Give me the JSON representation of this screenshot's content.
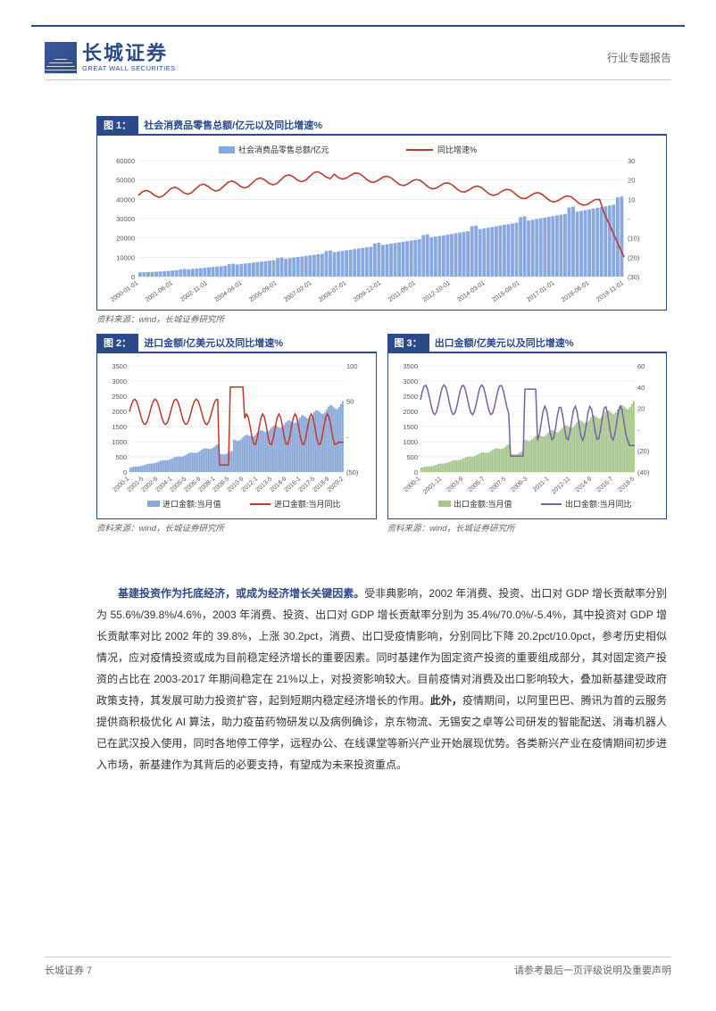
{
  "header": {
    "logo_cn": "长城证券",
    "logo_en": "GREAT WALL SECURITIES",
    "report_type": "行业专题报告"
  },
  "fig1": {
    "label": "图 1：",
    "title": "社会消费品零售总额/亿元以及同比增速%",
    "type": "bar_line_combo",
    "legend_bar": "社会消费品零售总额/亿元",
    "legend_line": "同比增速%",
    "x_labels": [
      "2000-01-01",
      "2001-06-01",
      "2002-11-01",
      "2004-04-01",
      "2005-09-01",
      "2007-02-01",
      "2008-07-01",
      "2009-12-01",
      "2011-05-01",
      "2012-10-01",
      "2014-03-01",
      "2015-08-01",
      "2017-01-01",
      "2018-06-01",
      "2019-11-01"
    ],
    "y_left_ticks": [
      0,
      10000,
      20000,
      30000,
      40000,
      50000,
      60000
    ],
    "y_right_ticks": [
      "(30)",
      "(20)",
      "(10)",
      "-",
      "10",
      "20",
      "30"
    ],
    "bar_color": "#8aa8e0",
    "line_color": "#c0392b",
    "bar_values_first": 2200,
    "bar_values_last": 38000,
    "line_start": 12,
    "line_peak": 23,
    "line_end": -20,
    "source": "资料来源：wind，长城证券研究所"
  },
  "fig2": {
    "label": "图 2：",
    "title": "进口金额/亿美元以及同比增速%",
    "type": "bar_line_combo",
    "legend_bar": "进口金额:当月值",
    "legend_line": "进口金额:当月同比",
    "x_labels": [
      "2000-1",
      "2001-5",
      "2002-9",
      "2004-1",
      "2005-5",
      "2006-9",
      "2008-1",
      "2009-5",
      "2010-9",
      "2012-1",
      "2013-5",
      "2014-9",
      "2016-1",
      "2017-5",
      "2018-9",
      "2020-2"
    ],
    "y_left_ticks": [
      0,
      500,
      1000,
      1500,
      2000,
      2500,
      3000,
      3500
    ],
    "y_right_ticks": [
      "(50)",
      "-",
      "50",
      "100"
    ],
    "bar_color": "#8aa8e0",
    "line_color": "#c0392b",
    "source": "资料来源：wind，长城证券研究所"
  },
  "fig3": {
    "label": "图 3：",
    "title": "出口金额/亿美元以及同比增速%",
    "type": "bar_line_combo",
    "legend_bar": "出口金额:当月值",
    "legend_line": "出口金额:当月同比",
    "x_labels": [
      "2000-1",
      "2001-11",
      "2003-9",
      "2005-7",
      "2007-5",
      "2009-3",
      "2011-1",
      "2012-11",
      "2014-9",
      "2016-7",
      "2018-5"
    ],
    "y_left_ticks": [
      0,
      500,
      1000,
      1500,
      2000,
      2500,
      3000,
      3500
    ],
    "y_right_ticks": [
      "(40)",
      "(20)",
      "-",
      "20",
      "40",
      "60"
    ],
    "bar_color": "#a8c888",
    "line_color": "#7860a8",
    "source": "资料来源：wind，长城证券研究所"
  },
  "body": {
    "lead": "基建投资作为托底经济，或成为经济增长关键因素。",
    "text": "受非典影响，2002 年消费、投资、出口对 GDP 增长贡献率分别为 55.6%/39.8%/4.6%，2003 年消费、投资、出口对 GDP 增长贡献率分别为 35.4%/70.0%/-5.4%，其中投资对 GDP 增长贡献率对比 2002 年的 39.8%，上涨 30.2pct，消费、出口受疫情影响，分别同比下降 20.2pct/10.0pct，参考历史相似情况，应对疫情投资或成为目前稳定经济增长的重要因素。同时基建作为固定资产投资的重要组成部分，其对固定资产投资的占比在 2003-2017 年期间稳定在 21%以上，对投资影响较大。目前疫情对消费及出口影响较大，叠加新基建受政府政策支持，其发展可助力投资扩容，起到短期内稳定经济增长的作用。",
    "bold2": "此外，",
    "text2": "疫情期间，以阿里巴巴、腾讯为首的云服务提供商积极优化 AI 算法，助力疫苗药物研发以及病例确诊，京东物流、无锡安之卓等公司研发的智能配送、消毒机器人已在武汉投入使用，同时各地停工停学，远程办公、在线课堂等新兴产业开始展现优势。各类新兴产业在疫情期间初步进入市场，新基建作为其背后的必要支持，有望成为未来投资重点。"
  },
  "footer": {
    "left": "长城证券 7",
    "right": "请参考最后一页评级说明及重要声明"
  },
  "colors": {
    "brand": "#2a4a8a",
    "grid": "#dddddd"
  }
}
